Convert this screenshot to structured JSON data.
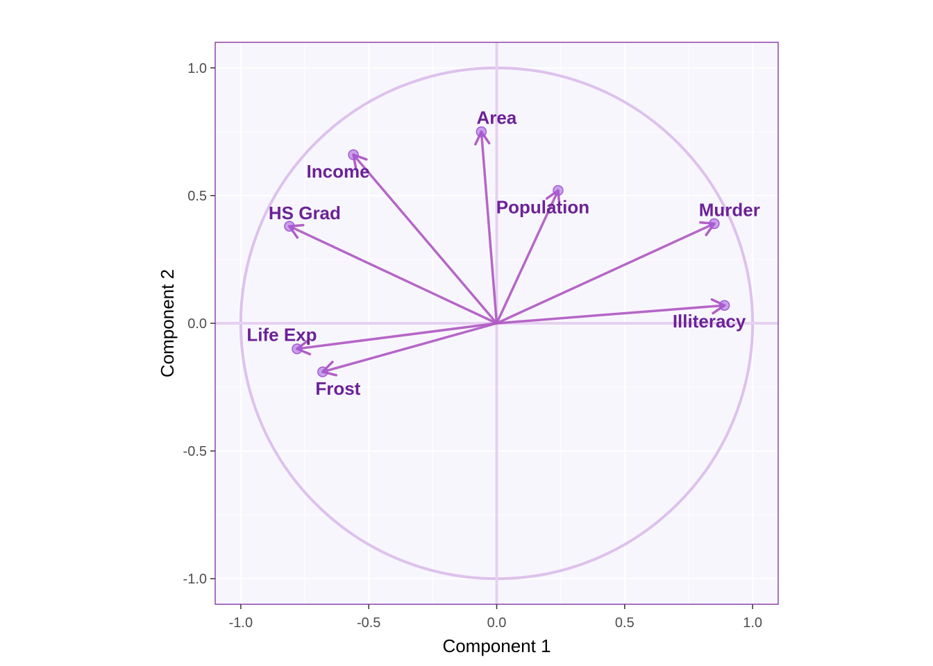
{
  "chart_data": {
    "type": "scatter",
    "subtype": "pca-correlation-circle",
    "title": "",
    "xlabel": "Component 1",
    "ylabel": "Component 2",
    "xlim": [
      -1.1,
      1.1
    ],
    "ylim": [
      -1.1,
      1.1
    ],
    "x_ticks": [
      -1.0,
      -0.5,
      0.0,
      0.5,
      1.0
    ],
    "y_ticks": [
      -1.0,
      -0.5,
      0.0,
      0.5,
      1.0
    ],
    "x_tick_labels": [
      "-1.0",
      "-0.5",
      "0.0",
      "0.5",
      "1.0"
    ],
    "y_tick_labels": [
      "-1.0",
      "-0.5",
      "0.0",
      "0.5",
      "1.0"
    ],
    "grid": true,
    "unit_circle": true,
    "variables": [
      {
        "name": "Population",
        "x": 0.24,
        "y": 0.52
      },
      {
        "name": "Income",
        "x": -0.56,
        "y": 0.66
      },
      {
        "name": "Illiteracy",
        "x": 0.89,
        "y": 0.07
      },
      {
        "name": "Life Exp",
        "x": -0.78,
        "y": -0.1
      },
      {
        "name": "Murder",
        "x": 0.85,
        "y": 0.39
      },
      {
        "name": "HS Grad",
        "x": -0.81,
        "y": 0.38
      },
      {
        "name": "Frost",
        "x": -0.68,
        "y": -0.19
      },
      {
        "name": "Area",
        "x": -0.06,
        "y": 0.75
      }
    ],
    "colors": {
      "panel_background": "#f8f6fd",
      "panel_border": "#8e44ad",
      "grid": "#ffffff",
      "circle": "#ddc2ec",
      "zero_lines": "#e6d1f1",
      "arrow": "#b15ec4",
      "point": "#a25ad8",
      "label": "#6b2296"
    }
  }
}
